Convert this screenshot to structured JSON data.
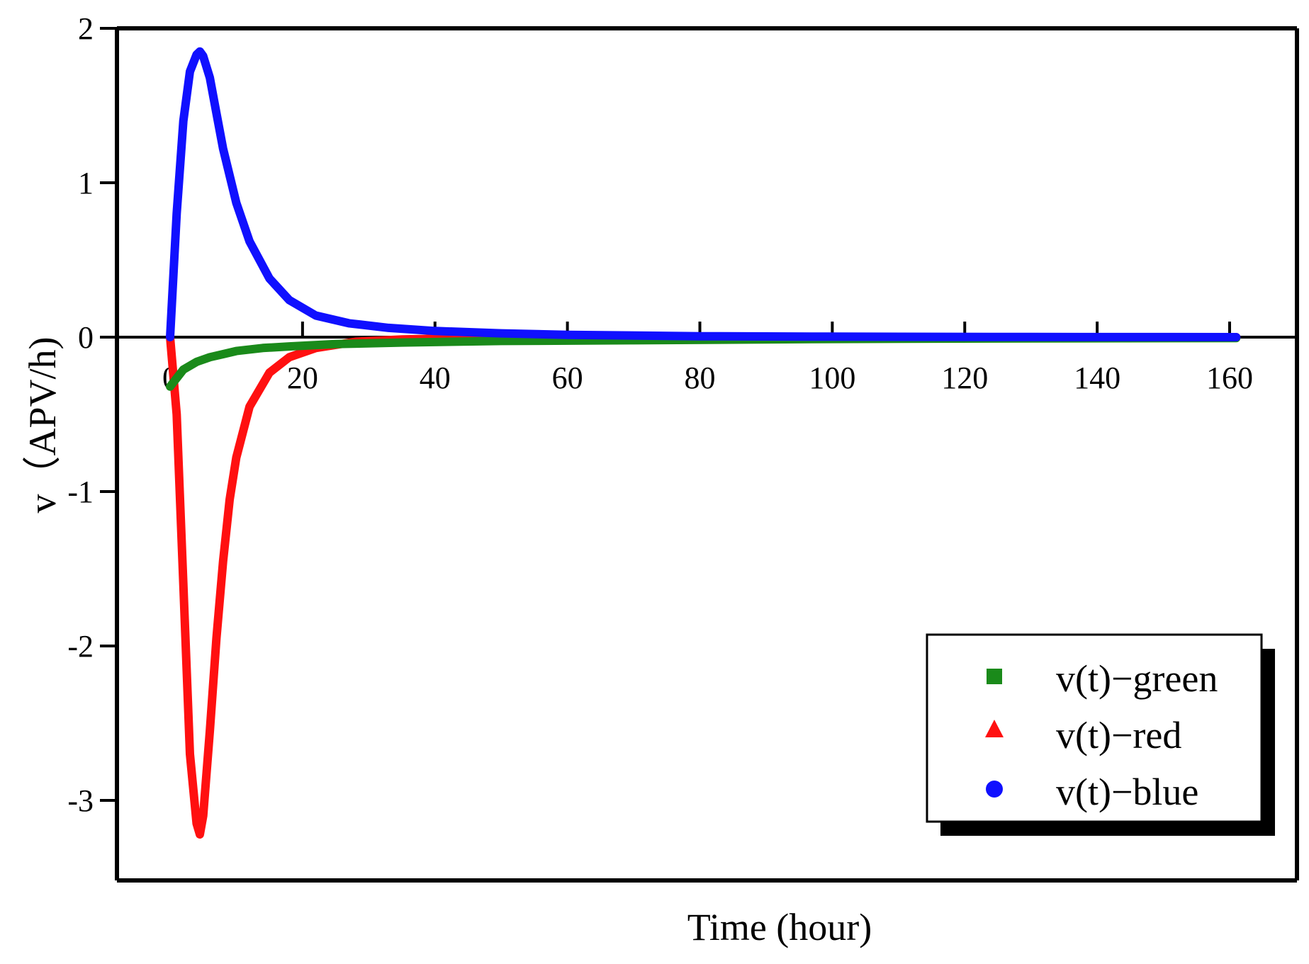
{
  "chart_data": {
    "type": "line",
    "title": "",
    "xlabel": "Time (hour)",
    "ylabel": "v（APV/h)",
    "xlim": [
      -5,
      170
    ],
    "ylim": [
      -3.5,
      2
    ],
    "x_ticks": [
      0,
      20,
      40,
      60,
      80,
      100,
      120,
      140,
      160
    ],
    "x_tick_labels": [
      "0",
      "20",
      "40",
      "60",
      "80",
      "100",
      "120",
      "140",
      "160"
    ],
    "y_ticks": [
      2,
      1,
      0,
      -1,
      -2,
      -3
    ],
    "y_tick_labels": [
      "2",
      "1",
      "0",
      "-1",
      "-2",
      "-3"
    ],
    "zero_line": true,
    "legend_position": "bottom-right",
    "series": [
      {
        "name": "v(t)−green",
        "color": "#1a8a1a",
        "marker": "square",
        "x": [
          0,
          2,
          4,
          6,
          8,
          10,
          14,
          18,
          25,
          35,
          50,
          70,
          100,
          130,
          161
        ],
        "y": [
          -0.32,
          -0.21,
          -0.16,
          -0.13,
          -0.11,
          -0.09,
          -0.07,
          -0.06,
          -0.045,
          -0.035,
          -0.025,
          -0.02,
          -0.012,
          -0.008,
          -0.006
        ]
      },
      {
        "name": "v(t)−red",
        "color": "#ff1010",
        "marker": "triangle",
        "x": [
          0,
          1,
          2,
          3,
          4,
          4.5,
          5,
          6,
          7,
          8,
          9,
          10,
          12,
          15,
          18,
          22,
          28,
          35,
          45,
          60,
          100,
          161
        ],
        "y": [
          0,
          -0.5,
          -1.6,
          -2.7,
          -3.15,
          -3.22,
          -3.1,
          -2.55,
          -1.95,
          -1.45,
          -1.05,
          -0.78,
          -0.45,
          -0.23,
          -0.13,
          -0.07,
          -0.03,
          -0.015,
          -0.006,
          -0.002,
          0,
          0
        ]
      },
      {
        "name": "v(t)−blue",
        "color": "#1010ff",
        "marker": "circle",
        "x": [
          0,
          1,
          2,
          3,
          4,
          4.5,
          5,
          6,
          7,
          8,
          10,
          12,
          15,
          18,
          22,
          27,
          33,
          40,
          50,
          60,
          80,
          100,
          130,
          161
        ],
        "y": [
          0,
          0.8,
          1.4,
          1.72,
          1.83,
          1.85,
          1.82,
          1.68,
          1.45,
          1.22,
          0.87,
          0.62,
          0.38,
          0.24,
          0.14,
          0.09,
          0.06,
          0.04,
          0.025,
          0.015,
          0.006,
          0.003,
          0.001,
          0
        ]
      }
    ]
  }
}
